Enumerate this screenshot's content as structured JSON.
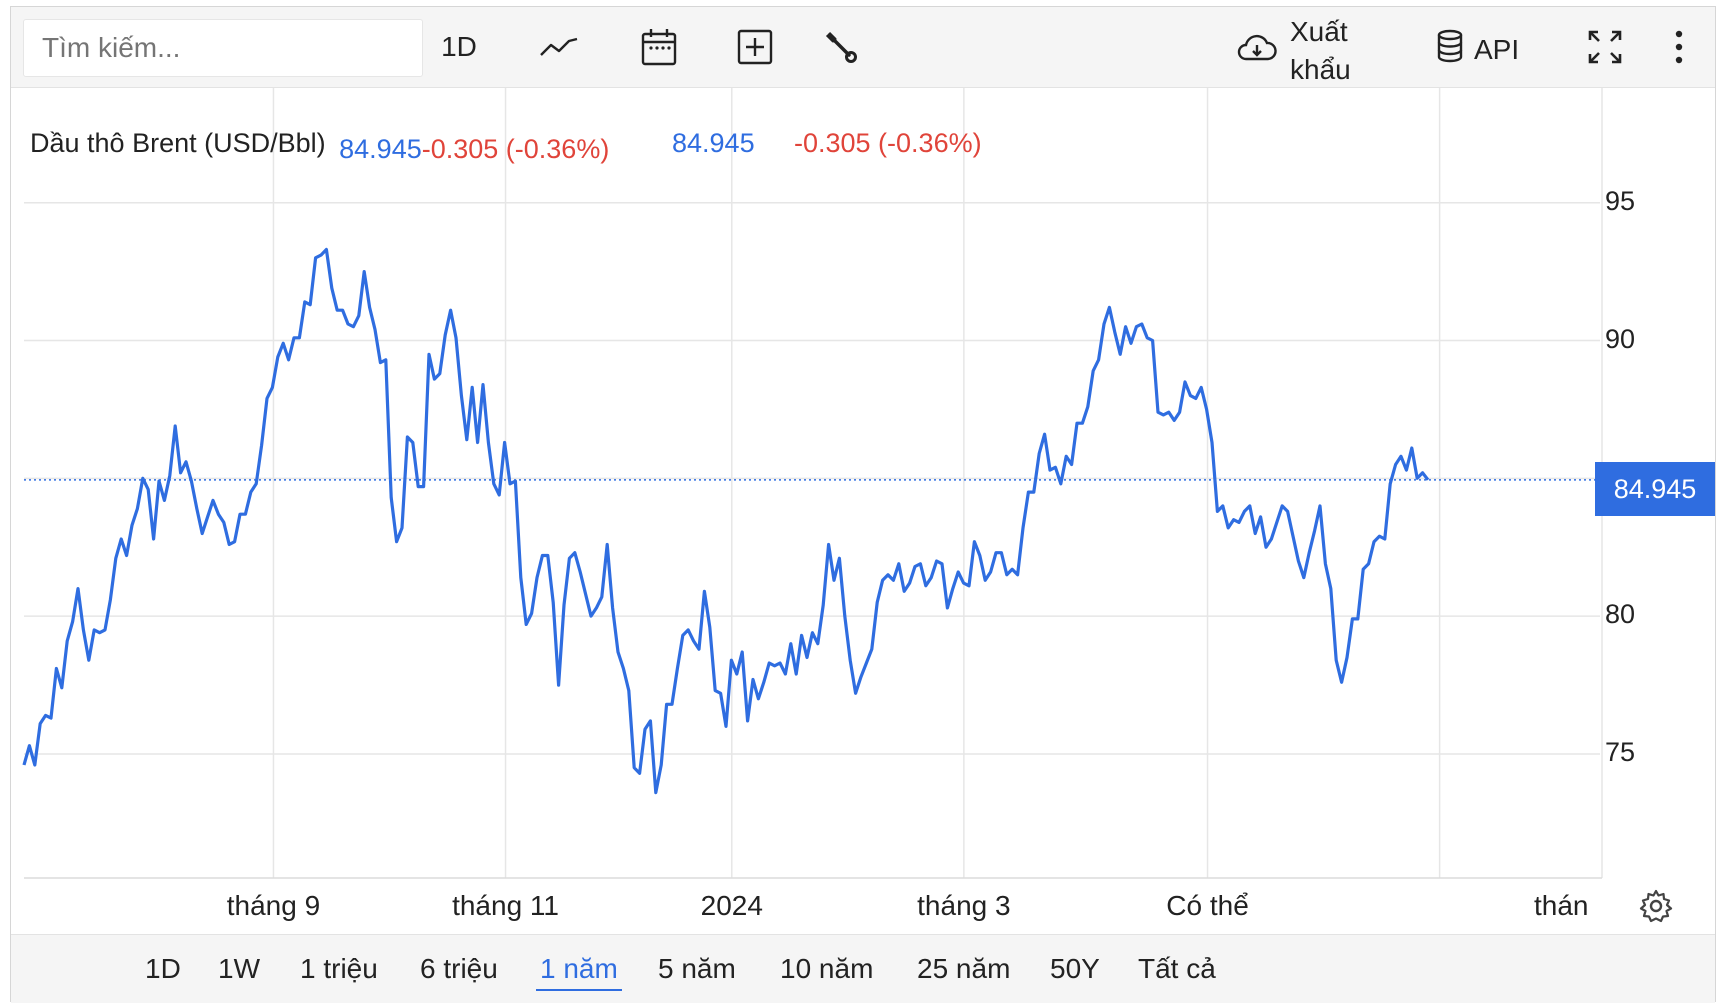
{
  "toolbar": {
    "search_placeholder": "Tìm kiếm...",
    "interval_label": "1D",
    "export_label": "Xuất khẩu",
    "api_label": "API",
    "icons": [
      "line-chart-icon",
      "calendar-icon",
      "add-indicator-icon",
      "wrench-icon",
      "cloud-download-icon",
      "database-icon",
      "fullscreen-icon",
      "more-vertical-icon"
    ]
  },
  "legend": {
    "title": "Dầu thô Brent (USD/Bbl)",
    "value": "84.945",
    "change": "-0.305 (-0.36%)",
    "value_repeat": "84.945",
    "change_repeat": "-0.305 (-0.36%)"
  },
  "price_tag": "84.945",
  "colors": {
    "line": "#2f6de0",
    "down": "#e0443a",
    "grid": "#e6e6e6",
    "toolbar_bg": "#f5f5f5"
  },
  "range_buttons": [
    "1D",
    "1W",
    "1 triệu",
    "6 triệu",
    "1 năm",
    "5 năm",
    "10 năm",
    "25 năm",
    "50Y",
    "Tất cả"
  ],
  "active_range": "1 năm",
  "chart_data": {
    "type": "line",
    "title": "Dầu thô Brent (USD/Bbl)",
    "ylim": [
      70.5,
      98
    ],
    "yticks": [
      75,
      80,
      85,
      90,
      95
    ],
    "ytick_labels": [
      "75",
      "80",
      "",
      "90",
      "95"
    ],
    "xtick_labels": [
      "tháng 9",
      "tháng 11",
      "2024",
      "tháng 3",
      "Có thể",
      "thán"
    ],
    "x_ticks": [
      43,
      83,
      122,
      162,
      204,
      244
    ],
    "x_start": 0,
    "x_end": 242,
    "grid": true,
    "last_value": 84.945,
    "reference_line": 84.945,
    "series": [
      {
        "values": [
          74.6,
          75.3,
          74.6,
          76.1,
          76.4,
          76.3,
          78.1,
          77.4,
          79.1,
          79.8,
          81.0,
          79.5,
          78.4,
          79.5,
          79.4,
          79.5,
          80.6,
          82.1,
          82.8,
          82.2,
          83.3,
          83.9,
          85.0,
          84.6,
          82.8,
          84.9,
          84.2,
          85.1,
          86.9,
          85.2,
          85.6,
          84.9,
          83.9,
          83.0,
          83.6,
          84.2,
          83.7,
          83.4,
          82.6,
          82.7,
          83.7,
          83.7,
          84.5,
          84.8,
          86.2,
          87.9,
          88.3,
          89.4,
          89.9,
          89.3,
          90.1,
          90.1,
          91.4,
          91.3,
          93.0,
          93.1,
          93.3,
          91.9,
          91.1,
          91.1,
          90.6,
          90.5,
          90.9,
          92.5,
          91.2,
          90.4,
          89.2,
          89.3,
          84.3,
          82.7,
          83.2,
          86.5,
          86.3,
          84.7,
          84.7,
          89.5,
          88.6,
          88.8,
          90.2,
          91.1,
          90.1,
          88.0,
          86.4,
          88.3,
          86.3,
          88.4,
          86.3,
          84.8,
          84.4,
          86.3,
          84.8,
          84.9,
          81.4,
          79.7,
          80.1,
          81.4,
          82.2,
          82.2,
          80.5,
          77.5,
          80.4,
          82.1,
          82.3,
          81.6,
          80.8,
          80.0,
          80.3,
          80.7,
          82.6,
          80.3,
          78.7,
          78.1,
          77.3,
          74.5,
          74.3,
          75.9,
          76.2,
          73.6,
          74.6,
          76.8,
          76.8,
          78.1,
          79.3,
          79.5,
          79.1,
          78.8,
          80.9,
          79.6,
          77.3,
          77.2,
          76.0,
          78.4,
          77.9,
          78.7,
          76.2,
          77.7,
          77.0,
          77.6,
          78.3,
          78.2,
          78.3,
          77.9,
          79.0,
          77.9,
          79.3,
          78.5,
          79.4,
          79.0,
          80.4,
          82.6,
          81.3,
          82.1,
          80.0,
          78.4,
          77.2,
          77.8,
          78.3,
          78.8,
          80.5,
          81.3,
          81.5,
          81.3,
          81.9,
          80.9,
          81.2,
          81.8,
          81.9,
          81.1,
          81.4,
          82.0,
          81.9,
          80.3,
          81.0,
          81.6,
          81.2,
          81.1,
          82.7,
          82.2,
          81.3,
          81.6,
          82.3,
          82.3,
          81.5,
          81.7,
          81.5,
          83.2,
          84.5,
          84.5,
          85.9,
          86.6,
          85.3,
          85.4,
          84.8,
          85.8,
          85.5,
          87.0,
          87.0,
          87.6,
          88.9,
          89.3,
          90.6,
          91.2,
          90.3,
          89.5,
          90.5,
          89.9,
          90.5,
          90.6,
          90.1,
          90.0,
          87.4,
          87.3,
          87.4,
          87.1,
          87.4,
          88.5,
          88.0,
          87.9,
          88.3,
          87.5,
          86.3,
          83.8,
          84.0,
          83.2,
          83.5,
          83.4,
          83.8,
          84.0,
          83.0,
          83.6,
          82.5,
          82.8,
          83.4,
          84.0,
          83.8,
          82.9,
          82.0,
          81.4,
          82.3,
          83.1,
          84.0,
          81.9,
          81.0,
          78.4,
          77.6,
          78.5,
          79.9,
          79.9,
          81.7,
          81.9,
          82.7,
          82.9,
          82.8,
          84.8,
          85.5,
          85.8,
          85.3,
          86.1,
          85.0,
          85.2,
          84.945
        ]
      }
    ]
  }
}
